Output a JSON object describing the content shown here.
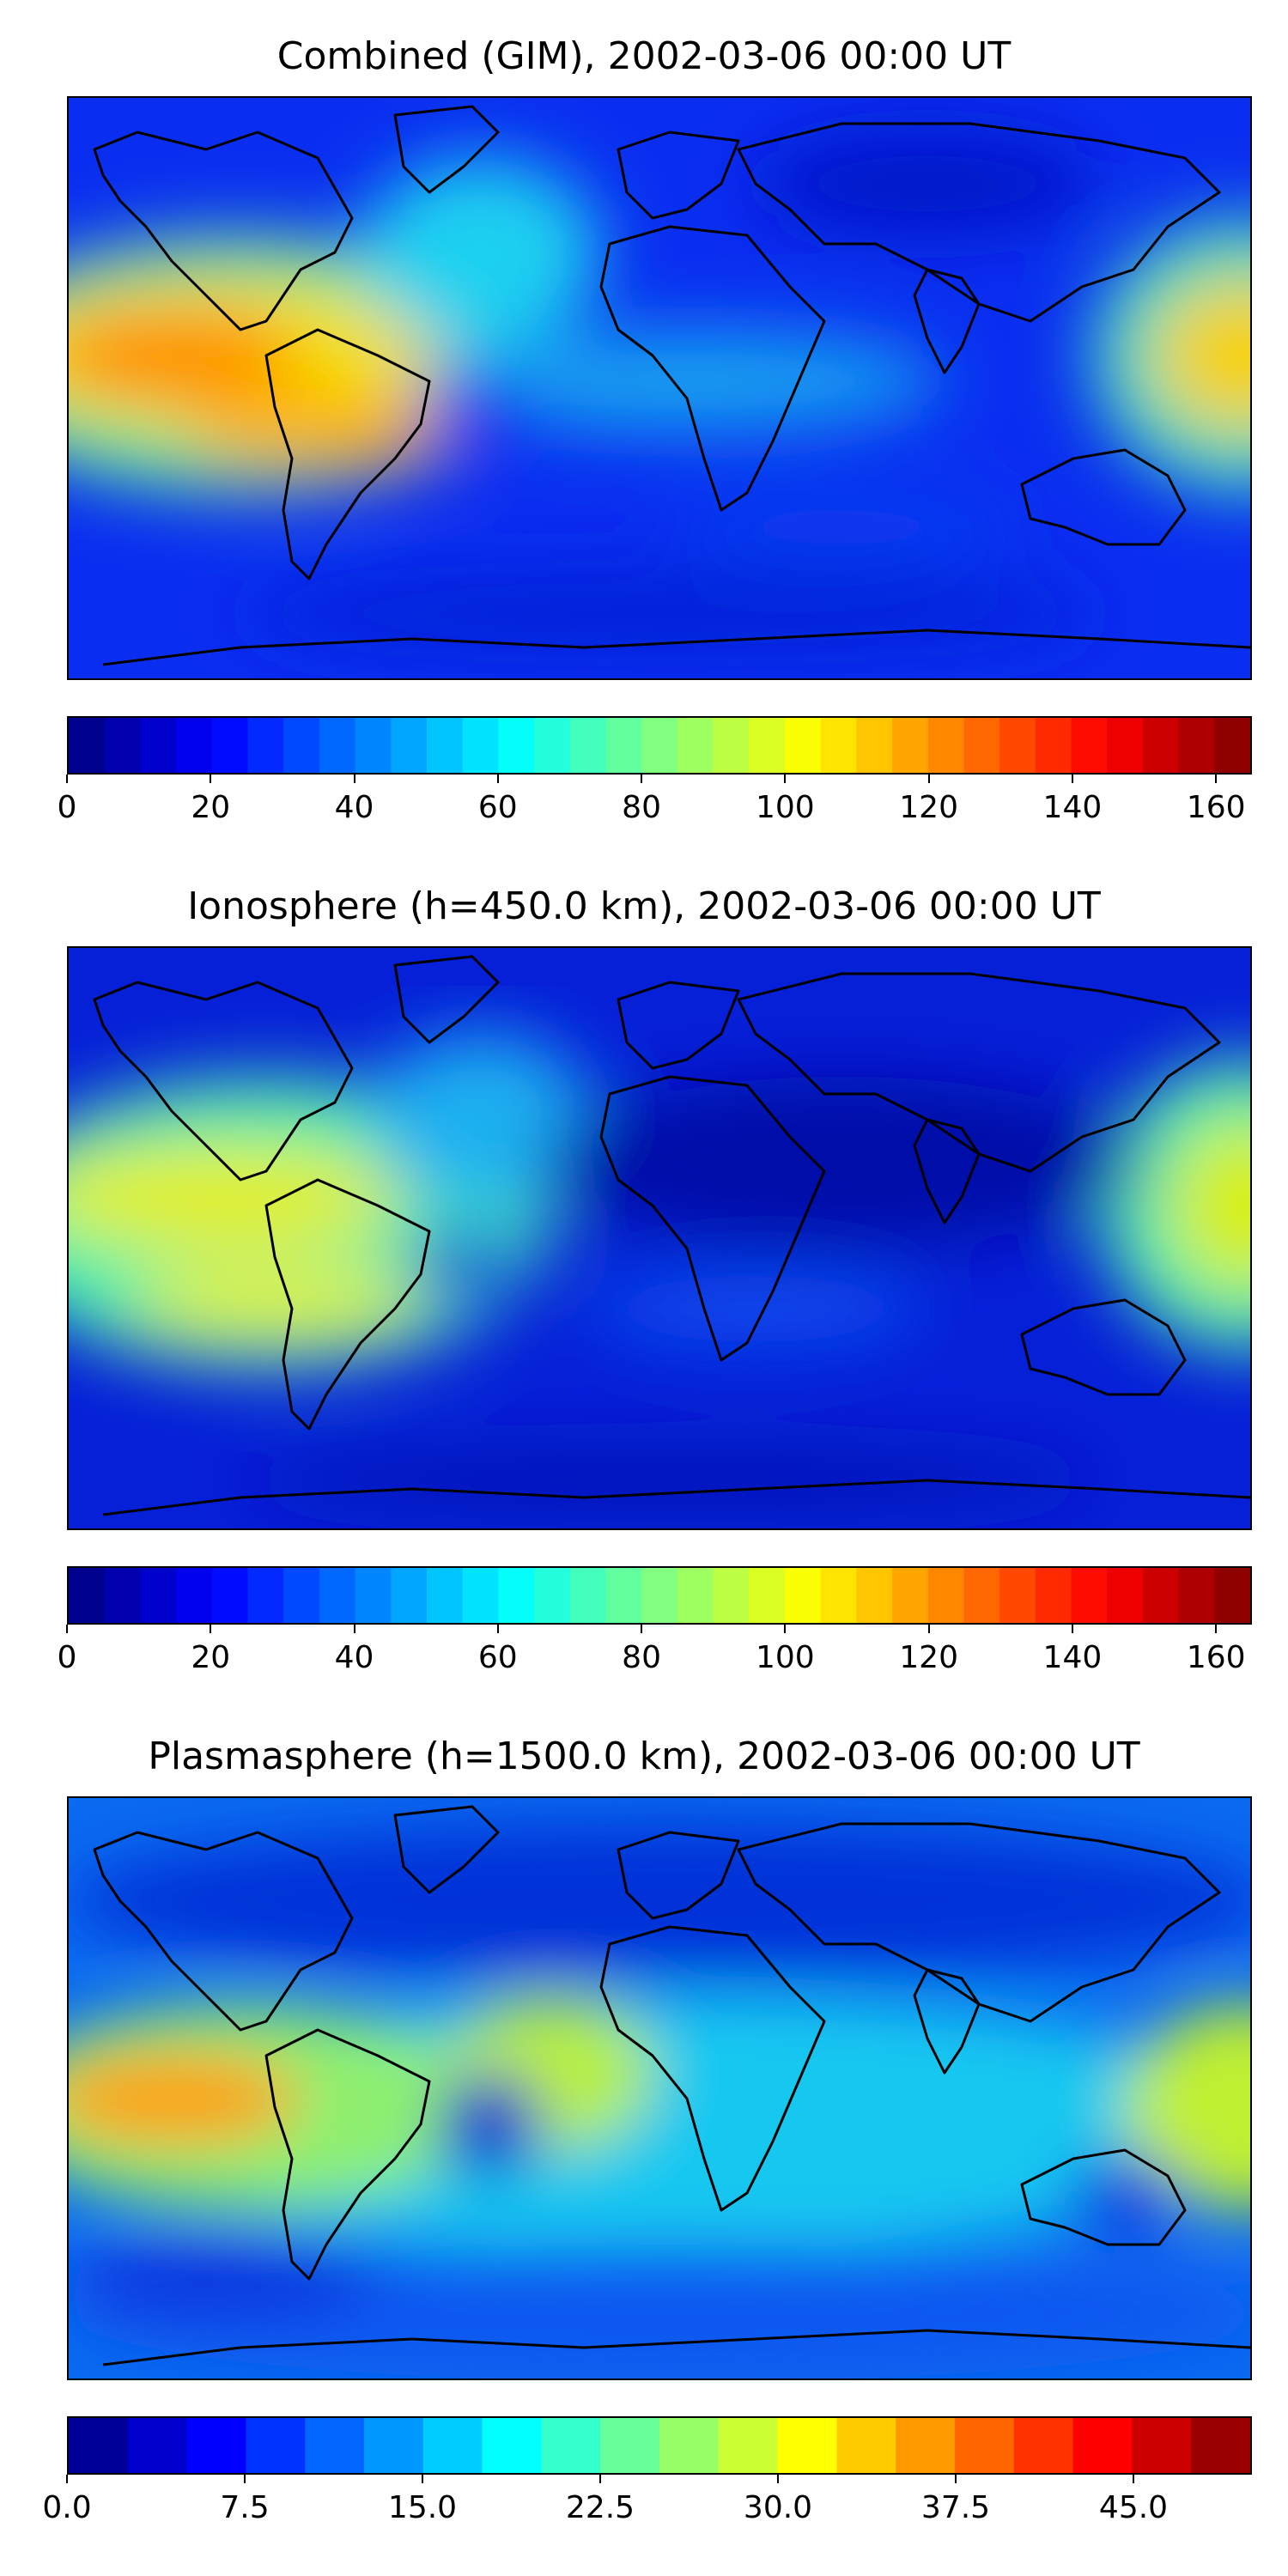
{
  "panels": [
    {
      "title": "Combined (GIM), 2002-03-06 00:00 UT",
      "colorbar": {
        "min": 0,
        "max": 165,
        "levels": 33,
        "tick_values": [
          0,
          20,
          40,
          60,
          80,
          100,
          120,
          140,
          160
        ],
        "tick_labels": [
          "0",
          "20",
          "40",
          "60",
          "80",
          "100",
          "120",
          "140",
          "160"
        ]
      }
    },
    {
      "title": "Ionosphere  (h=450.0 km), 2002-03-06 00:00 UT",
      "colorbar": {
        "min": 0,
        "max": 165,
        "levels": 33,
        "tick_values": [
          0,
          20,
          40,
          60,
          80,
          100,
          120,
          140,
          160
        ],
        "tick_labels": [
          "0",
          "20",
          "40",
          "60",
          "80",
          "100",
          "120",
          "140",
          "160"
        ]
      }
    },
    {
      "title": "Plasmasphere (h=1500.0 km), 2002-03-06 00:00 UT",
      "colorbar": {
        "min": 0,
        "max": 50,
        "levels": 20,
        "tick_values": [
          0,
          7.5,
          15,
          22.5,
          30,
          37.5,
          45
        ],
        "tick_labels": [
          "0.0",
          "7.5",
          "15.0",
          "22.5",
          "30.0",
          "37.5",
          "45.0"
        ]
      }
    }
  ],
  "colormap": "jet"
}
